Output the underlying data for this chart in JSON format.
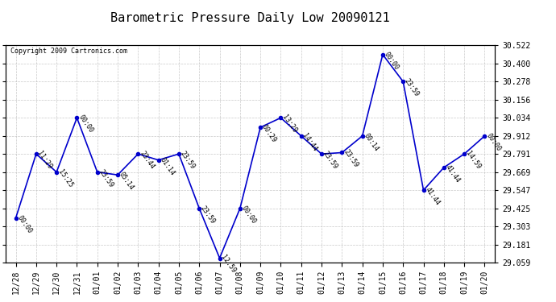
{
  "title": "Barometric Pressure Daily Low 20090121",
  "copyright": "Copyright 2009 Cartronics.com",
  "x_labels": [
    "12/28",
    "12/29",
    "12/30",
    "12/31",
    "01/01",
    "01/02",
    "01/03",
    "01/04",
    "01/05",
    "01/06",
    "01/07",
    "01/08",
    "01/09",
    "01/10",
    "01/11",
    "01/12",
    "01/13",
    "01/14",
    "01/15",
    "01/16",
    "01/17",
    "01/18",
    "01/19",
    "01/20"
  ],
  "y_values": [
    29.36,
    29.791,
    29.669,
    30.034,
    29.669,
    29.65,
    29.791,
    29.75,
    29.791,
    29.425,
    29.09,
    29.425,
    29.97,
    30.034,
    29.912,
    29.791,
    29.8,
    29.912,
    30.46,
    30.278,
    29.547,
    29.7,
    29.791,
    29.912
  ],
  "point_labels": [
    "00:00",
    "11:29",
    "15:25",
    "00:00",
    "23:59",
    "05:14",
    "23:44",
    "01:14",
    "23:59",
    "23:59",
    "12:59",
    "00:00",
    "00:29",
    "13:29",
    "14:44",
    "23:59",
    "23:59",
    "00:14",
    "00:00",
    "23:59",
    "41:44",
    "41:44",
    "14:59",
    "00:00"
  ],
  "y_ticks": [
    29.059,
    29.181,
    29.303,
    29.425,
    29.547,
    29.669,
    29.791,
    29.912,
    30.034,
    30.156,
    30.278,
    30.4,
    30.522
  ],
  "y_min": 29.059,
  "y_max": 30.522,
  "line_color": "#0000CC",
  "marker_color": "#0000CC",
  "bg_color": "#FFFFFF",
  "grid_color": "#BBBBBB",
  "title_fontsize": 11,
  "tick_fontsize": 7,
  "annot_fontsize": 6
}
